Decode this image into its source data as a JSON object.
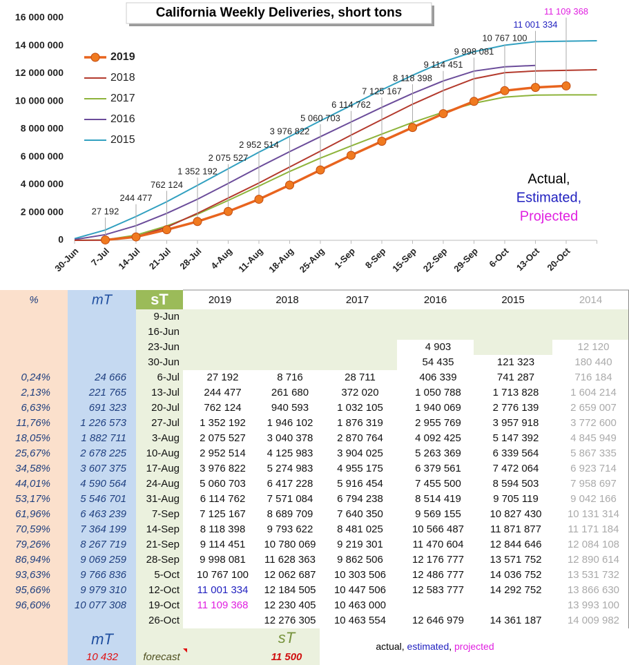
{
  "chart_data": {
    "type": "line",
    "title": "California Weekly  Deliveries, short tons",
    "categories": [
      "30-Jun",
      "7-Jul",
      "14-Jul",
      "21-Jul",
      "28-Jul",
      "4-Aug",
      "11-Aug",
      "18-Aug",
      "25-Aug",
      "1-Sep",
      "8-Sep",
      "15-Sep",
      "22-Sep",
      "29-Sep",
      "6-Oct",
      "13-Oct",
      "20-Oct",
      null
    ],
    "ylim": [
      0,
      16000000
    ],
    "yticks": [
      {
        "value": 0,
        "label": "0"
      },
      {
        "value": 2000000,
        "label": "2 000 000"
      },
      {
        "value": 4000000,
        "label": "4 000 000"
      },
      {
        "value": 6000000,
        "label": "6 000 000"
      },
      {
        "value": 8000000,
        "label": "8 000 000"
      },
      {
        "value": 10000000,
        "label": "10 000 000"
      },
      {
        "value": 12000000,
        "label": "12 000 000"
      },
      {
        "value": 14000000,
        "label": "14 000 000"
      },
      {
        "value": 16000000,
        "label": "16 000 000"
      }
    ],
    "grid": false,
    "legend": "upper left",
    "annotation": [
      "Actual,",
      "Estimated,",
      "Projected"
    ],
    "annotation_colors": [
      "#000000",
      "#1f1fbf",
      "#e020e0"
    ],
    "series": [
      {
        "name": "2019",
        "color": "#e8641e",
        "marker": true,
        "values": [
          null,
          27192,
          244477,
          762124,
          1352192,
          2075527,
          2952514,
          3976822,
          5060703,
          6114762,
          7125167,
          8118398,
          9114451,
          9998081,
          10767100,
          11001334,
          11109368,
          null
        ],
        "value_labels": [
          null,
          "27 192",
          "244 477",
          "762 124",
          "1 352 192",
          "2 075 527",
          "2 952 514",
          "3 976 822",
          "5 060 703",
          "6 114 762",
          "7 125 167",
          "8 118 398",
          "9 114 451",
          "9 998 081",
          "10 767 100",
          "11 001 334",
          "11 109 368",
          null
        ],
        "value_label_colors": [
          null,
          "#222",
          "#222",
          "#222",
          "#222",
          "#222",
          "#222",
          "#222",
          "#222",
          "#222",
          "#222",
          "#222",
          "#222",
          "#222",
          "#222",
          "#1f1fbf",
          "#e020e0",
          null
        ]
      },
      {
        "name": "2018",
        "color": "#b3392c",
        "values": [
          0,
          8716,
          261680,
          940593,
          1946102,
          3040378,
          4125983,
          5274983,
          6417228,
          7571084,
          8689709,
          9793622,
          10780069,
          11628363,
          12062687,
          12184505,
          12230405,
          12276305
        ]
      },
      {
        "name": "2017",
        "color": "#8db33a",
        "values": [
          0,
          28711,
          372020,
          1032105,
          1876319,
          2870764,
          3904025,
          4955175,
          5916454,
          6794238,
          7640350,
          8481025,
          9219301,
          9862506,
          10303506,
          10447506,
          10463000,
          10463554
        ]
      },
      {
        "name": "2016",
        "color": "#6b4c9a",
        "values": [
          54435,
          406339,
          1050788,
          1940069,
          2955769,
          4092425,
          5263369,
          6379561,
          7455500,
          8514419,
          9569155,
          10566487,
          11470604,
          12176777,
          12486777,
          12583777,
          null,
          null
        ]
      },
      {
        "name": "2015",
        "color": "#31a0c0",
        "values": [
          121323,
          741287,
          1713828,
          2776139,
          3957918,
          5147392,
          6339564,
          7472064,
          8594503,
          9705119,
          10827430,
          11871877,
          12844646,
          13571752,
          14036752,
          14292752,
          14330000,
          14361187
        ]
      }
    ]
  },
  "table": {
    "header": [
      "%",
      "mT",
      "sT",
      "2019",
      "2018",
      "2017",
      "2016",
      "2015",
      "2014"
    ],
    "rows": [
      [
        null,
        null,
        "9-Jun",
        null,
        null,
        null,
        null,
        null,
        null
      ],
      [
        null,
        null,
        "16-Jun",
        null,
        null,
        null,
        null,
        null,
        null
      ],
      [
        null,
        null,
        "23-Jun",
        null,
        null,
        null,
        "4 903",
        null,
        "12 120"
      ],
      [
        null,
        null,
        "30-Jun",
        null,
        null,
        null,
        "54 435",
        "121 323",
        "180 440"
      ],
      [
        "0,24%",
        "24 666",
        "6-Jul",
        "27 192",
        "8 716",
        "28 711",
        "406 339",
        "741 287",
        "716 184"
      ],
      [
        "2,13%",
        "221 765",
        "13-Jul",
        "244 477",
        "261 680",
        "372 020",
        "1 050 788",
        "1 713 828",
        "1 604 214"
      ],
      [
        "6,63%",
        "691 323",
        "20-Jul",
        "762 124",
        "940 593",
        "1 032 105",
        "1 940 069",
        "2 776 139",
        "2 659 007"
      ],
      [
        "11,76%",
        "1 226 573",
        "27-Jul",
        "1 352 192",
        "1 946 102",
        "1 876 319",
        "2 955 769",
        "3 957 918",
        "3 772 600"
      ],
      [
        "18,05%",
        "1 882 711",
        "3-Aug",
        "2 075 527",
        "3 040 378",
        "2 870 764",
        "4 092 425",
        "5 147 392",
        "4 845 949"
      ],
      [
        "25,67%",
        "2 678 225",
        "10-Aug",
        "2 952 514",
        "4 125 983",
        "3 904 025",
        "5 263 369",
        "6 339 564",
        "5 867 335"
      ],
      [
        "34,58%",
        "3 607 375",
        "17-Aug",
        "3 976 822",
        "5 274 983",
        "4 955 175",
        "6 379 561",
        "7 472 064",
        "6 923 714"
      ],
      [
        "44,01%",
        "4 590 564",
        "24-Aug",
        "5 060 703",
        "6 417 228",
        "5 916 454",
        "7 455 500",
        "8 594 503",
        "7 958 697"
      ],
      [
        "53,17%",
        "5 546 701",
        "31-Aug",
        "6 114 762",
        "7 571 084",
        "6 794 238",
        "8 514 419",
        "9 705 119",
        "9 042 166"
      ],
      [
        "61,96%",
        "6 463 239",
        "7-Sep",
        "7 125 167",
        "8 689 709",
        "7 640 350",
        "9 569 155",
        "10 827 430",
        "10 131 314"
      ],
      [
        "70,59%",
        "7 364 199",
        "14-Sep",
        "8 118 398",
        "9 793 622",
        "8 481 025",
        "10 566 487",
        "11 871 877",
        "11 171 184"
      ],
      [
        "79,26%",
        "8 267 719",
        "21-Sep",
        "9 114 451",
        "10 780 069",
        "9 219 301",
        "11 470 604",
        "12 844 646",
        "12 084 108"
      ],
      [
        "86,94%",
        "9 069 259",
        "28-Sep",
        "9 998 081",
        "11 628 363",
        "9 862 506",
        "12 176 777",
        "13 571 752",
        "12 890 614"
      ],
      [
        "93,63%",
        "9 766 836",
        "5-Oct",
        "10 767 100",
        "12 062 687",
        "10 303 506",
        "12 486 777",
        "14 036 752",
        "13 531 732"
      ],
      [
        "95,66%",
        "9 979 310",
        "12-Oct",
        "11 001 334",
        "12 184 505",
        "10 447 506",
        "12 583 777",
        "14 292 752",
        "13 866 630"
      ],
      [
        "96,60%",
        "10 077 308",
        "19-Oct",
        "11 109 368",
        "12 230 405",
        "10 463 000",
        null,
        null,
        "13 993 100"
      ],
      [
        null,
        null,
        "26-Oct",
        null,
        "12 276 305",
        "10 463 554",
        "12 646 979",
        "14 361 187",
        "14 009 982"
      ]
    ],
    "footer": {
      "mT": "mT",
      "sT": "sT",
      "mT_value": "10 432",
      "note": "forecast",
      "sT_value": "11 500",
      "legend": [
        "actual",
        ", ",
        "estimated",
        ", ",
        "projected"
      ]
    }
  }
}
